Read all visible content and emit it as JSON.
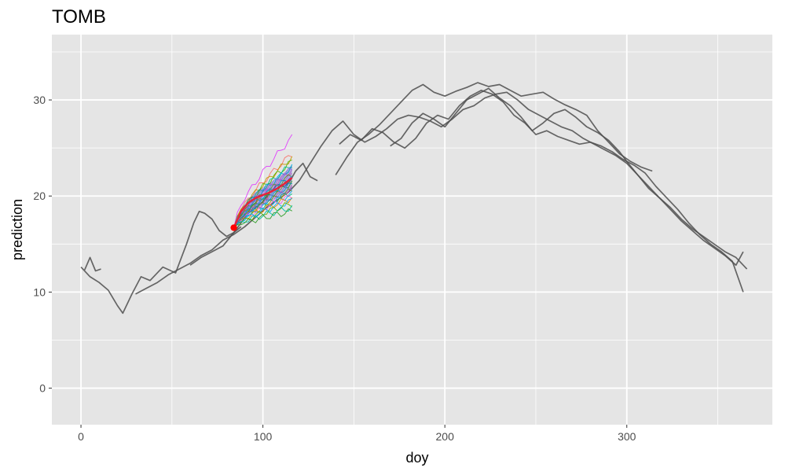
{
  "chart_data": {
    "type": "line",
    "title": "TOMB",
    "xlabel": "doy",
    "ylabel": "prediction",
    "xlim": [
      -16,
      380
    ],
    "ylim": [
      -3.8,
      36.8
    ],
    "x_ticks": [
      0,
      100,
      200,
      300
    ],
    "y_ticks": [
      0,
      10,
      20,
      30
    ],
    "grid": true,
    "legend": "none",
    "colors": {
      "panel": "#e5e5e5",
      "grid": "#ffffff",
      "observed": "#4d4d4d",
      "forecast_mean": "#e8213a",
      "start_point": "#ff0000"
    },
    "observed_series": [
      {
        "x": [
          0,
          5,
          10,
          15,
          20,
          23,
          28,
          33,
          38,
          45,
          52,
          58,
          62,
          65,
          68,
          72,
          76,
          80,
          84,
          88,
          92,
          96,
          100,
          104,
          108,
          112,
          115,
          118,
          122,
          126,
          130
        ],
        "y": [
          12.6,
          11.6,
          11.0,
          10.2,
          8.6,
          7.8,
          9.8,
          11.6,
          11.2,
          12.6,
          12.0,
          15.0,
          17.2,
          18.4,
          18.2,
          17.6,
          16.4,
          15.8,
          16.2,
          17.2,
          18.2,
          18.8,
          19.4,
          20.4,
          21.2,
          21.0,
          21.6,
          22.6,
          23.4,
          22.0,
          21.6
        ]
      },
      {
        "x": [
          2,
          5,
          8,
          11,
          140,
          146,
          152,
          158,
          164,
          170,
          176,
          182,
          188,
          194,
          200,
          206,
          212,
          218,
          224,
          230,
          236,
          242,
          248,
          254,
          260,
          266,
          272,
          278,
          284,
          290,
          296,
          302,
          308,
          314
        ],
        "y": [
          12.3,
          13.6,
          12.2,
          12.4,
          22.2,
          24.0,
          25.6,
          26.4,
          27.4,
          28.6,
          29.8,
          31.0,
          31.6,
          30.8,
          30.4,
          30.9,
          31.3,
          31.8,
          31.4,
          31.6,
          31.0,
          30.4,
          30.6,
          30.8,
          30.1,
          29.5,
          29.0,
          28.4,
          26.8,
          25.6,
          24.4,
          23.6,
          23.0,
          22.6
        ]
      },
      {
        "x": [
          30,
          36,
          42,
          48,
          54,
          60,
          66,
          72,
          78,
          84,
          90,
          96,
          102,
          108,
          114,
          120,
          126,
          132,
          138,
          144,
          150,
          156,
          162,
          168,
          174,
          180,
          186,
          192,
          198,
          204,
          210,
          216,
          222,
          228,
          234,
          240,
          246,
          252,
          258,
          264,
          270,
          276,
          282,
          288,
          294,
          300,
          306,
          312,
          318,
          324,
          330,
          336,
          342,
          348,
          354,
          360,
          366
        ],
        "y": [
          9.8,
          10.4,
          11.0,
          11.8,
          12.4,
          13.0,
          13.8,
          14.4,
          15.4,
          16.0,
          16.8,
          17.8,
          18.8,
          19.6,
          20.4,
          21.6,
          23.4,
          25.2,
          26.8,
          27.8,
          26.4,
          25.6,
          26.2,
          27.0,
          28.0,
          28.4,
          28.2,
          27.8,
          27.2,
          28.0,
          29.0,
          29.4,
          30.2,
          30.6,
          30.8,
          30.0,
          29.0,
          28.4,
          27.8,
          27.2,
          26.8,
          26.0,
          25.4,
          24.8,
          24.2,
          23.4,
          22.2,
          21.0,
          19.8,
          18.8,
          17.6,
          16.6,
          15.8,
          15.0,
          14.2,
          13.6,
          12.4
        ]
      },
      {
        "x": [
          60,
          66,
          72,
          78,
          84,
          88,
          142,
          148,
          154,
          160,
          166,
          172,
          178,
          184,
          190,
          196,
          202,
          208,
          214,
          220,
          226,
          232,
          238,
          244,
          250,
          256,
          262,
          268,
          274,
          280,
          286,
          292,
          298,
          304,
          310,
          316,
          322,
          328,
          334,
          340,
          346,
          352,
          358,
          364
        ],
        "y": [
          12.8,
          13.6,
          14.2,
          14.8,
          16.2,
          16.8,
          25.4,
          26.4,
          25.8,
          27.0,
          26.6,
          25.6,
          25.0,
          26.0,
          27.6,
          28.4,
          28.0,
          29.4,
          30.4,
          31.0,
          30.6,
          29.8,
          28.4,
          27.6,
          26.4,
          26.8,
          26.2,
          25.8,
          25.4,
          25.6,
          25.2,
          24.6,
          23.8,
          23.2,
          22.4,
          21.0,
          19.8,
          18.6,
          17.2,
          16.0,
          15.0,
          14.2,
          13.2,
          10.0
        ]
      },
      {
        "x": [
          170,
          176,
          182,
          188,
          194,
          200,
          206,
          212,
          218,
          224,
          230,
          236,
          242,
          248,
          254,
          260,
          266,
          272,
          278,
          284,
          290,
          296,
          300,
          306,
          312,
          318,
          324,
          330,
          336,
          342,
          348,
          354,
          360,
          364
        ],
        "y": [
          25.2,
          26.0,
          27.6,
          28.6,
          28.0,
          27.2,
          28.6,
          30.0,
          30.6,
          31.2,
          30.2,
          29.4,
          28.2,
          26.8,
          27.6,
          28.6,
          29.0,
          28.2,
          27.2,
          26.6,
          25.8,
          24.6,
          23.6,
          22.2,
          20.8,
          19.8,
          18.6,
          17.4,
          16.4,
          15.4,
          14.6,
          13.8,
          12.8,
          14.2
        ]
      }
    ],
    "forecast": {
      "x_start": 84,
      "x_end": 116,
      "start_value": 16.7,
      "ensemble_end_values": [
        26.1,
        24.4,
        24.0,
        23.6,
        23.3,
        23.0,
        22.8,
        22.6,
        22.4,
        22.2,
        22.0,
        21.8,
        21.6,
        21.4,
        21.2,
        21.0,
        20.8,
        20.6,
        20.4,
        20.2,
        20.0,
        19.8,
        19.5,
        19.2,
        18.8,
        18.4
      ],
      "ensemble_colors": [
        "#e040fb",
        "#f8766d",
        "#c49a00",
        "#53b400",
        "#00c094",
        "#00b6eb",
        "#a58aff",
        "#fb61d7",
        "#e76bf3",
        "#7cae00",
        "#00bfc4",
        "#619cff",
        "#d89000",
        "#39b600",
        "#00bae0",
        "#9590ff",
        "#ff62bc",
        "#a3a500",
        "#00bf7d",
        "#00a9ff",
        "#f564e3",
        "#e58700",
        "#00b0f6",
        "#6bb100",
        "#00c1a3",
        "#35a02e"
      ],
      "mean": {
        "x": [
          84,
          88,
          92,
          96,
          100,
          104,
          108,
          112,
          116
        ],
        "y": [
          16.7,
          18.4,
          19.3,
          19.8,
          20.1,
          20.4,
          20.8,
          21.3,
          21.9
        ]
      },
      "band": {
        "x": [
          84,
          88,
          92,
          96,
          100,
          104,
          108,
          112,
          116
        ],
        "lower": [
          16.7,
          17.4,
          18.2,
          18.7,
          19.1,
          19.5,
          19.8,
          20.2,
          20.6
        ],
        "upper": [
          16.7,
          18.6,
          19.7,
          20.4,
          20.9,
          21.4,
          21.9,
          22.5,
          23.2
        ]
      }
    }
  }
}
